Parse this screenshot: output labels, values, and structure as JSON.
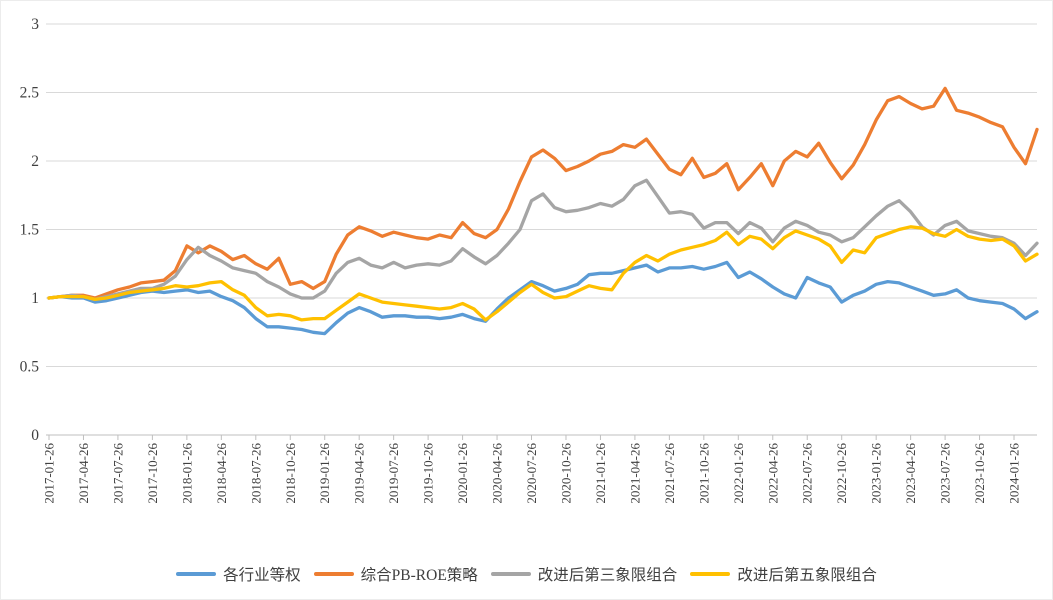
{
  "colors": {
    "background": "#FFFFFF",
    "gridline": "#D9D9D9",
    "axis_line": "#BFBFBF",
    "tick_text": "#404040"
  },
  "chart_data": {
    "type": "line",
    "title": "",
    "xlabel": "",
    "ylabel": "",
    "ylim": [
      0,
      3
    ],
    "y_tick_labels": [
      "0",
      "0.5",
      "1",
      "1.5",
      "2",
      "2.5",
      "3"
    ],
    "y_tick_values": [
      0,
      0.5,
      1,
      1.5,
      2,
      2.5,
      3
    ],
    "grid": "horizontal",
    "legend_position": "bottom",
    "x_frequency": "monthly",
    "x_tick_every_n_points": 3,
    "x_tick_labels": [
      "2017-01-26",
      "2017-04-26",
      "2017-07-26",
      "2017-10-26",
      "2018-01-26",
      "2018-04-26",
      "2018-07-26",
      "2018-10-26",
      "2019-01-26",
      "2019-04-26",
      "2019-07-26",
      "2019-10-26",
      "2020-01-26",
      "2020-04-26",
      "2020-07-26",
      "2020-10-26",
      "2021-01-26",
      "2021-04-26",
      "2021-07-26",
      "2021-10-26",
      "2022-01-26",
      "2022-04-26",
      "2022-07-26",
      "2022-10-26",
      "2023-01-26",
      "2023-04-26",
      "2023-07-26",
      "2023-10-26",
      "2024-01-26"
    ],
    "series": [
      {
        "name": "各行业等权",
        "color": "#5B9BD5",
        "values": [
          1.0,
          1.01,
          1.0,
          1.0,
          0.97,
          0.98,
          1.0,
          1.02,
          1.04,
          1.05,
          1.04,
          1.05,
          1.06,
          1.04,
          1.05,
          1.01,
          0.98,
          0.93,
          0.85,
          0.79,
          0.79,
          0.78,
          0.77,
          0.75,
          0.74,
          0.82,
          0.89,
          0.93,
          0.9,
          0.86,
          0.87,
          0.87,
          0.86,
          0.86,
          0.85,
          0.86,
          0.88,
          0.85,
          0.83,
          0.92,
          1.0,
          1.06,
          1.12,
          1.09,
          1.05,
          1.07,
          1.1,
          1.17,
          1.18,
          1.18,
          1.2,
          1.22,
          1.24,
          1.19,
          1.22,
          1.22,
          1.23,
          1.21,
          1.23,
          1.26,
          1.15,
          1.19,
          1.14,
          1.08,
          1.03,
          1.0,
          1.15,
          1.11,
          1.08,
          0.97,
          1.02,
          1.05,
          1.1,
          1.12,
          1.11,
          1.08,
          1.05,
          1.02,
          1.03,
          1.06,
          1.0,
          0.98,
          0.97,
          0.96,
          0.92,
          0.85,
          0.9
        ]
      },
      {
        "name": "综合PB-ROE策略",
        "color": "#ED7D31",
        "values": [
          1.0,
          1.01,
          1.02,
          1.02,
          1.0,
          1.03,
          1.06,
          1.08,
          1.11,
          1.12,
          1.13,
          1.2,
          1.38,
          1.33,
          1.38,
          1.34,
          1.28,
          1.31,
          1.25,
          1.21,
          1.29,
          1.1,
          1.12,
          1.07,
          1.12,
          1.32,
          1.46,
          1.52,
          1.49,
          1.45,
          1.48,
          1.46,
          1.44,
          1.43,
          1.46,
          1.44,
          1.55,
          1.47,
          1.44,
          1.5,
          1.65,
          1.85,
          2.03,
          2.08,
          2.02,
          1.93,
          1.96,
          2.0,
          2.05,
          2.07,
          2.12,
          2.1,
          2.16,
          2.05,
          1.94,
          1.9,
          2.02,
          1.88,
          1.91,
          1.98,
          1.79,
          1.88,
          1.98,
          1.82,
          2.0,
          2.07,
          2.03,
          2.13,
          1.99,
          1.87,
          1.97,
          2.12,
          2.3,
          2.44,
          2.47,
          2.42,
          2.38,
          2.4,
          2.53,
          2.37,
          2.35,
          2.32,
          2.28,
          2.25,
          2.1,
          1.98,
          2.23
        ]
      },
      {
        "name": "改进后第三象限组合",
        "color": "#A5A5A5",
        "values": [
          1.0,
          1.01,
          1.02,
          1.01,
          0.99,
          1.01,
          1.03,
          1.05,
          1.07,
          1.07,
          1.1,
          1.16,
          1.28,
          1.37,
          1.31,
          1.27,
          1.22,
          1.2,
          1.18,
          1.12,
          1.08,
          1.03,
          1.0,
          1.0,
          1.05,
          1.18,
          1.26,
          1.29,
          1.24,
          1.22,
          1.26,
          1.22,
          1.24,
          1.25,
          1.24,
          1.27,
          1.36,
          1.3,
          1.25,
          1.31,
          1.4,
          1.5,
          1.71,
          1.76,
          1.66,
          1.63,
          1.64,
          1.66,
          1.69,
          1.67,
          1.72,
          1.82,
          1.86,
          1.74,
          1.62,
          1.63,
          1.61,
          1.51,
          1.55,
          1.55,
          1.47,
          1.55,
          1.51,
          1.41,
          1.51,
          1.56,
          1.53,
          1.48,
          1.46,
          1.41,
          1.44,
          1.52,
          1.6,
          1.67,
          1.71,
          1.63,
          1.52,
          1.46,
          1.53,
          1.56,
          1.49,
          1.47,
          1.45,
          1.44,
          1.4,
          1.31,
          1.4
        ]
      },
      {
        "name": "改进后第五象限组合",
        "color": "#FFC000",
        "values": [
          1.0,
          1.01,
          1.01,
          1.01,
          0.99,
          1.0,
          1.02,
          1.04,
          1.05,
          1.06,
          1.07,
          1.09,
          1.08,
          1.09,
          1.11,
          1.12,
          1.06,
          1.02,
          0.93,
          0.87,
          0.88,
          0.87,
          0.84,
          0.85,
          0.85,
          0.91,
          0.97,
          1.03,
          1.0,
          0.97,
          0.96,
          0.95,
          0.94,
          0.93,
          0.92,
          0.93,
          0.96,
          0.92,
          0.84,
          0.9,
          0.97,
          1.04,
          1.1,
          1.04,
          1.0,
          1.01,
          1.05,
          1.09,
          1.07,
          1.06,
          1.18,
          1.26,
          1.31,
          1.27,
          1.32,
          1.35,
          1.37,
          1.39,
          1.42,
          1.48,
          1.39,
          1.45,
          1.43,
          1.36,
          1.44,
          1.49,
          1.46,
          1.43,
          1.38,
          1.26,
          1.35,
          1.33,
          1.44,
          1.47,
          1.5,
          1.52,
          1.51,
          1.47,
          1.45,
          1.5,
          1.45,
          1.43,
          1.42,
          1.43,
          1.38,
          1.27,
          1.32
        ]
      }
    ]
  }
}
